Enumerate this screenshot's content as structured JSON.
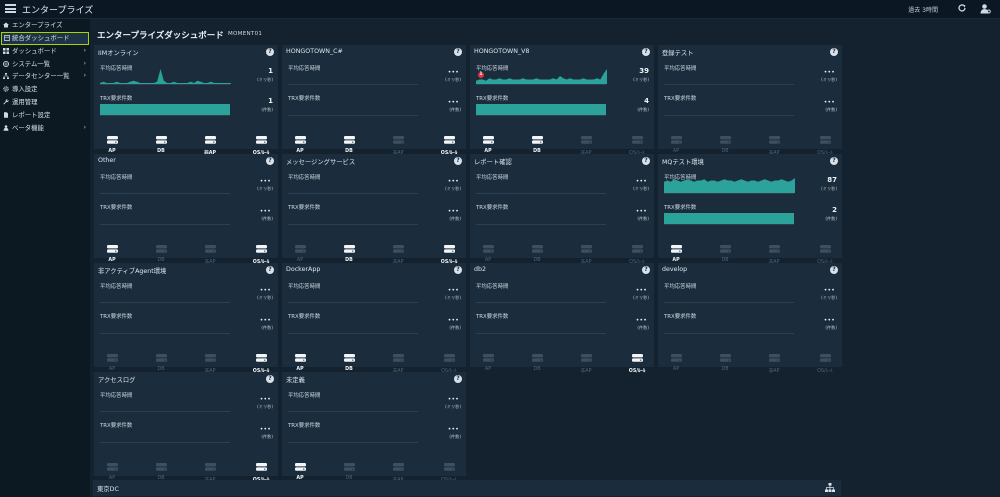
{
  "app": {
    "title": "エンタープライズ"
  },
  "header": {
    "period": "過去 3時間"
  },
  "sidebar": {
    "items": [
      {
        "label": "エンタープライズ",
        "icon": "home-icon",
        "chevron": ""
      },
      {
        "label": "統合ダッシュボード",
        "icon": "dashboard-icon",
        "chevron": "",
        "active": true
      },
      {
        "label": "ダッシュボード",
        "icon": "grid-icon",
        "chevron": "›"
      },
      {
        "label": "システム一覧",
        "icon": "globe-icon",
        "chevron": "›"
      },
      {
        "label": "データセンター一覧",
        "icon": "sitemap-icon",
        "chevron": "›"
      },
      {
        "label": "導入設定",
        "icon": "gear-icon",
        "chevron": ""
      },
      {
        "label": "運用管理",
        "icon": "wrench-icon",
        "chevron": ""
      },
      {
        "label": "レポート設定",
        "icon": "document-icon",
        "chevron": ""
      },
      {
        "label": "ベータ機能",
        "icon": "person-icon",
        "chevron": "›"
      }
    ]
  },
  "page": {
    "title": "エンタープライズダッシュボード",
    "subtitle": "MOMENT01"
  },
  "labels": {
    "avg_response": "平均応答時間",
    "trx_count": "TRX要求件数",
    "unit_seconds": "(ミリ秒)",
    "unit_count": "(件数)",
    "dots": "•••"
  },
  "server_labels": [
    "AP",
    "DB",
    "非AP",
    "OS/ﾙｰﾙ"
  ],
  "panels": [
    {
      "title": "IIMオンライン",
      "avg": "1",
      "trx": "1",
      "spark": [
        0,
        1,
        0,
        0,
        0,
        1,
        0,
        0,
        0,
        1,
        2,
        1,
        0,
        0,
        0,
        0,
        0,
        1,
        12,
        2,
        0,
        0,
        1,
        0,
        0,
        0,
        0,
        1,
        0,
        2,
        1,
        0,
        0,
        1,
        0,
        0,
        0,
        0,
        0,
        0
      ],
      "bar": 1.0,
      "servers": [
        true,
        true,
        true,
        true
      ],
      "alert": ""
    },
    {
      "title": "HONGOTOWN_C#",
      "avg": "",
      "trx": "",
      "spark": null,
      "bar": 0,
      "servers": [
        true,
        true,
        false,
        true
      ],
      "alert": ""
    },
    {
      "title": "HONGOTOWN_V8",
      "avg": "39",
      "trx": "4",
      "spark": [
        2,
        3,
        3,
        2,
        4,
        3,
        3,
        4,
        3,
        3,
        4,
        3,
        3,
        3,
        4,
        3,
        3,
        3,
        4,
        3,
        3,
        3,
        3,
        4,
        3,
        6,
        4,
        3,
        4,
        3,
        3,
        3,
        4,
        3,
        3,
        3,
        4,
        3,
        8,
        12
      ],
      "bar": 1.0,
      "servers": [
        true,
        true,
        false,
        false
      ],
      "alert": "1"
    },
    {
      "title": "登録テスト",
      "avg": "",
      "trx": "",
      "spark": null,
      "bar": 0,
      "servers": [
        false,
        false,
        false,
        false
      ],
      "alert": ""
    },
    {
      "title": "Other",
      "avg": "",
      "trx": "",
      "spark": null,
      "bar": 0,
      "servers": [
        true,
        false,
        false,
        true
      ],
      "alert": ""
    },
    {
      "title": "メッセージングサービス",
      "avg": "",
      "trx": "",
      "spark": null,
      "bar": 0,
      "servers": [
        false,
        true,
        false,
        true
      ],
      "alert": ""
    },
    {
      "title": "レポート確認",
      "avg": "",
      "trx": "",
      "spark": null,
      "bar": 0,
      "servers": [
        false,
        false,
        false,
        false
      ],
      "alert": ""
    },
    {
      "title": "MQテスト環境",
      "avg": "87",
      "trx": "2",
      "spark": [
        8,
        9,
        8,
        10,
        9,
        8,
        9,
        10,
        9,
        8,
        9,
        9,
        10,
        8,
        9,
        9,
        8,
        9,
        10,
        9,
        9,
        8,
        9,
        10,
        9,
        8,
        9,
        9,
        8,
        9,
        10,
        9,
        8,
        9,
        9,
        10,
        9,
        8,
        9,
        11
      ],
      "bar": 1.0,
      "servers": [
        true,
        false,
        false,
        false
      ],
      "alert": ""
    },
    {
      "title": "非アクティブAgent環境",
      "avg": "",
      "trx": "",
      "spark": null,
      "bar": 0,
      "servers": [
        false,
        false,
        false,
        true
      ],
      "alert": ""
    },
    {
      "title": "DockerApp",
      "avg": "",
      "trx": "",
      "spark": null,
      "bar": 0,
      "servers": [
        true,
        true,
        false,
        false
      ],
      "alert": ""
    },
    {
      "title": "db2",
      "avg": "",
      "trx": "",
      "spark": null,
      "bar": 0,
      "servers": [
        false,
        false,
        false,
        true
      ],
      "alert": ""
    },
    {
      "title": "develop",
      "avg": "",
      "trx": "",
      "spark": null,
      "bar": 0,
      "servers": [
        false,
        false,
        false,
        false
      ],
      "alert": ""
    },
    {
      "title": "アクセスログ",
      "avg": "",
      "trx": "",
      "spark": null,
      "bar": 0,
      "servers": [
        false,
        false,
        false,
        true
      ],
      "alert": ""
    },
    {
      "title": "未定義",
      "avg": "",
      "trx": "",
      "spark": null,
      "bar": 0,
      "servers": [
        true,
        false,
        false,
        false
      ],
      "alert": ""
    }
  ],
  "datacenter": {
    "label": "東京DC"
  },
  "colors": {
    "accent": "#a6d600",
    "chart": "#2ba39b",
    "alert": "#e0333a"
  }
}
